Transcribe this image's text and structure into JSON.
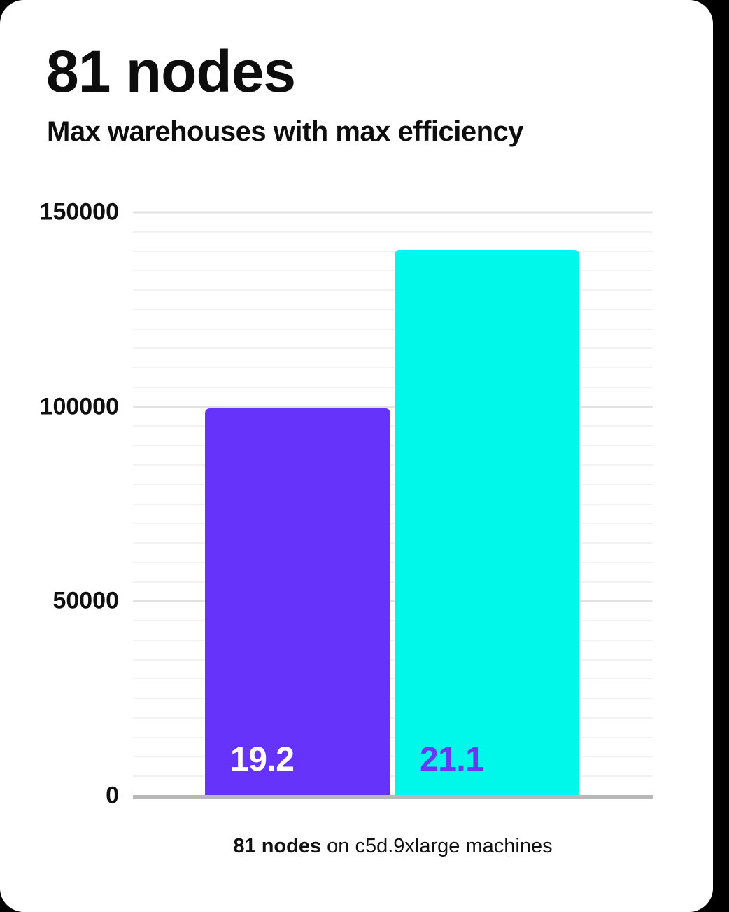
{
  "page": {
    "background_color": "#000000",
    "card_color": "#ffffff"
  },
  "header": {
    "title": "81 nodes",
    "subtitle": "Max warehouses with max efficiency"
  },
  "chart_data": {
    "type": "bar",
    "title": "81 nodes",
    "subtitle": "Max warehouses with max efficiency",
    "ylim": [
      0,
      150000
    ],
    "yticks": [
      0,
      50000,
      100000,
      150000
    ],
    "ytick_labels": [
      "0",
      "50000",
      "100000",
      "150000"
    ],
    "minor_gridline_step": 5000,
    "grid": true,
    "legend_position": "none",
    "xlabel": "",
    "ylabel": "",
    "bars": [
      {
        "bar_label": "19.2",
        "value": 99500,
        "color": "#6633fb",
        "label_color": "#ffffff"
      },
      {
        "bar_label": "21.1",
        "value": 140300,
        "color": "#00f8eb",
        "label_color": "#6e35f2"
      }
    ],
    "axis_color": "#b8b8b8",
    "major_grid_color": "#e3e3e3",
    "minor_grid_color": "#f2f2f2"
  },
  "caption": {
    "bold": "81 nodes",
    "rest": " on c5d.9xlarge machines"
  }
}
